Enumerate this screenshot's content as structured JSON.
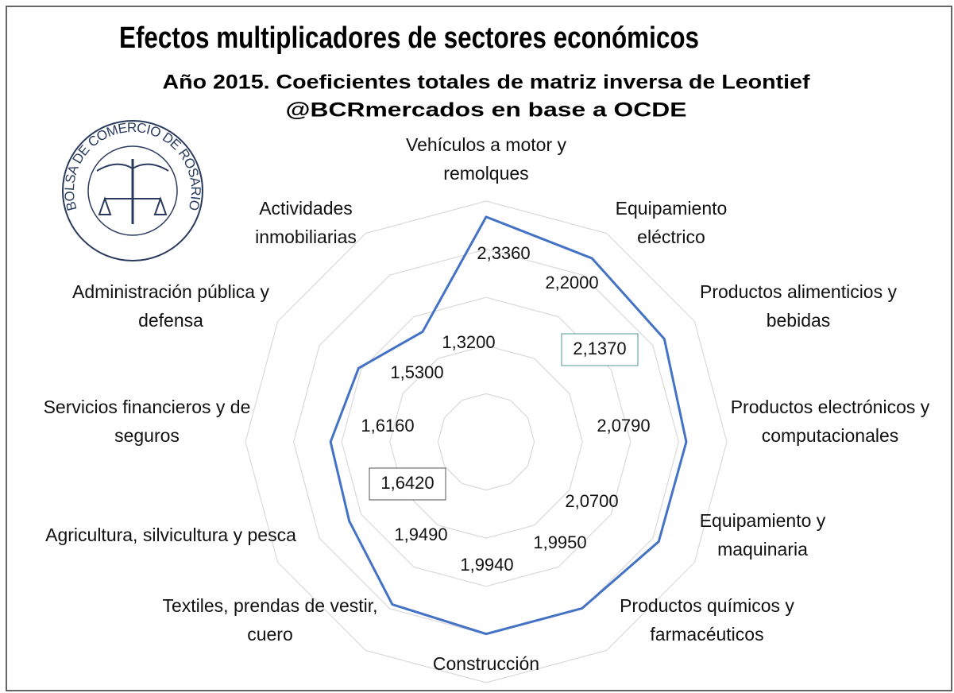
{
  "chart_data": {
    "type": "radar",
    "title": "Efectos multiplicadores de sectores económicos",
    "subtitle": "Año 2015. Coeficientes totales de matriz inversa de Leontief",
    "source": "@BCRmercados en base a OCDE",
    "logo_text": "BOLSA DE COMERCIO DE ROSARIO",
    "categories": [
      "Vehículos a motor y remolques",
      "Equipamiento eléctrico",
      "Productos alimenticios y bebidas",
      "Productos electrónicos y computacionales",
      "Equipamiento y maquinaria",
      "Productos químicos y farmacéuticos",
      "Construcción",
      "Textiles, prendas de vestir, cuero",
      "Agricultura, silvicultura y pesca",
      "Servicios financieros y de seguros",
      "Administración pública y defensa",
      "Actividades inmobiliarias"
    ],
    "values": [
      2.336,
      2.2,
      2.137,
      2.079,
      2.07,
      1.995,
      1.994,
      1.949,
      1.642,
      1.616,
      1.53,
      1.32
    ],
    "value_labels": [
      "2,3360",
      "2,2000",
      "2,1370",
      "2,0790",
      "2,0700",
      "1,9950",
      "1,9940",
      "1,9490",
      "1,6420",
      "1,6160",
      "1,5300",
      "1,3200"
    ],
    "highlighted": [
      2,
      8
    ],
    "color": "#4472c4",
    "ylim": [
      0,
      2.5
    ],
    "yticks": [
      0.5,
      1,
      1.5,
      2,
      2.5
    ],
    "grid": true
  }
}
